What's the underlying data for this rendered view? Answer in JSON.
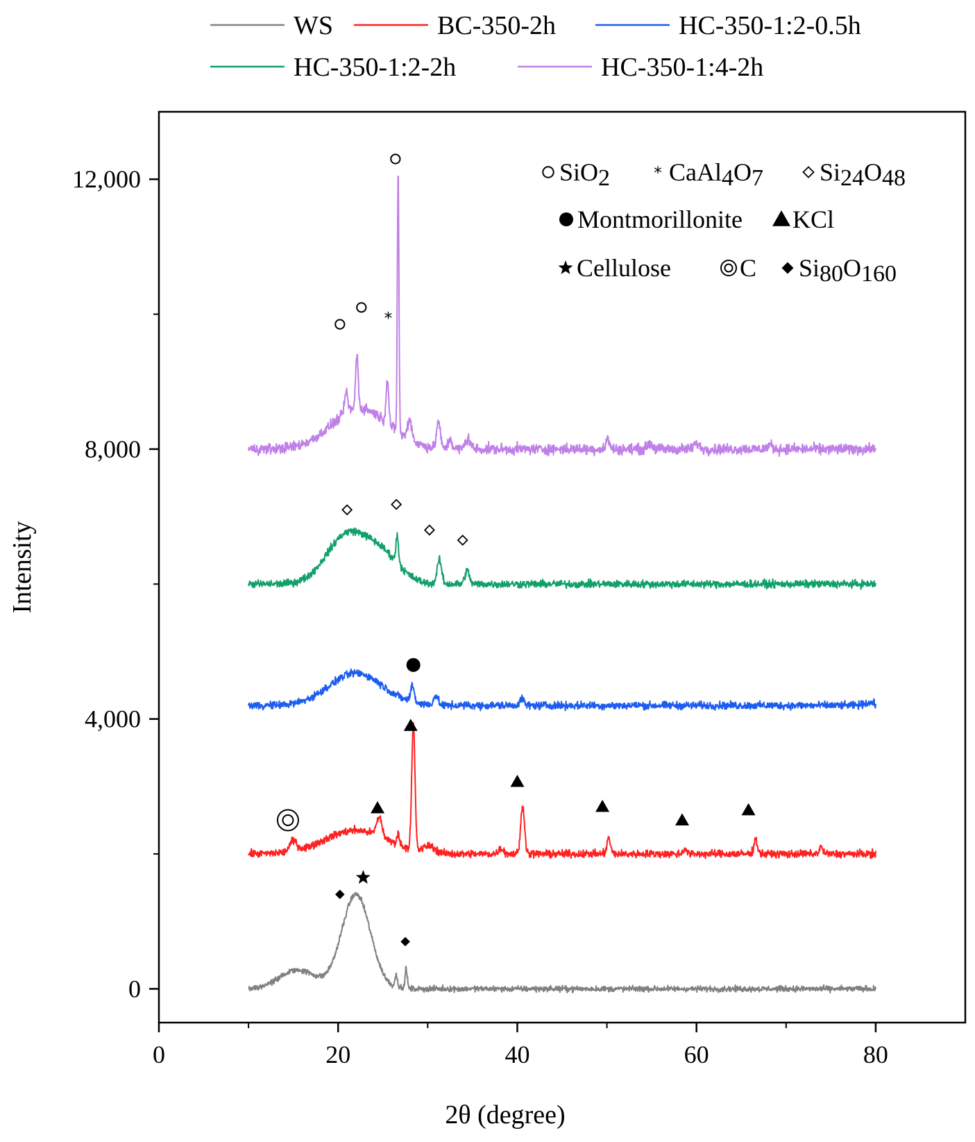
{
  "chart_data": {
    "type": "line",
    "title": "",
    "xlabel": "2θ (degree)",
    "ylabel": "Intensity",
    "xlim": [
      0,
      90
    ],
    "ylim": [
      -500,
      13000
    ],
    "x_ticks": [
      0,
      20,
      40,
      60,
      80
    ],
    "x_tick_labels": [
      "0",
      "20",
      "40",
      "60",
      "80"
    ],
    "y_ticks": [
      0,
      4000,
      8000,
      12000
    ],
    "y_tick_labels": [
      "0",
      "4,000",
      "8,000",
      "12,000"
    ],
    "x_range": [
      10,
      80
    ],
    "legend_position": "top",
    "series": [
      {
        "name": "WS",
        "color": "#808080",
        "offset": 0,
        "base_noise": 30,
        "features": [
          [
            15.5,
            280,
            2.0
          ],
          [
            22.0,
            1400,
            1.6
          ],
          [
            26.5,
            180,
            0.15
          ],
          [
            27.6,
            300,
            0.12
          ]
        ]
      },
      {
        "name": "BC-350-2h",
        "color": "#ff2020",
        "offset": 2000,
        "base_noise": 40,
        "features": [
          [
            15.0,
            150,
            0.4
          ],
          [
            22.0,
            350,
            3.5
          ],
          [
            24.6,
            280,
            0.3
          ],
          [
            26.7,
            150,
            0.15
          ],
          [
            28.4,
            1850,
            0.18
          ],
          [
            30.2,
            100,
            0.6
          ],
          [
            38.2,
            80,
            0.3
          ],
          [
            40.6,
            700,
            0.22
          ],
          [
            50.2,
            230,
            0.2
          ],
          [
            58.7,
            80,
            0.2
          ],
          [
            66.6,
            220,
            0.2
          ],
          [
            73.9,
            100,
            0.2
          ]
        ]
      },
      {
        "name": "HC-350-1:2-0.5h",
        "color": "#1c5cf0",
        "offset": 4200,
        "base_noise": 40,
        "features": [
          [
            22.0,
            480,
            3.0
          ],
          [
            28.3,
            250,
            0.2
          ],
          [
            30.9,
            140,
            0.25
          ],
          [
            40.5,
            100,
            0.25
          ],
          [
            79.3,
            40,
            0.6
          ]
        ]
      },
      {
        "name": "HC-350-1:2-2h",
        "color": "#12a06a",
        "offset": 6000,
        "base_noise": 40,
        "features": [
          [
            21.0,
            720,
            2.3
          ],
          [
            25.0,
            380,
            2.0
          ],
          [
            26.6,
            400,
            0.15
          ],
          [
            31.3,
            350,
            0.25
          ],
          [
            34.4,
            200,
            0.25
          ]
        ]
      },
      {
        "name": "HC-350-1:4-2h",
        "color": "#c080e8",
        "offset": 8000,
        "base_noise": 55,
        "features": [
          [
            22.5,
            600,
            3.2
          ],
          [
            20.9,
            300,
            0.2
          ],
          [
            22.1,
            800,
            0.15
          ],
          [
            25.5,
            650,
            0.15
          ],
          [
            26.7,
            3900,
            0.09
          ],
          [
            28.0,
            300,
            0.25
          ],
          [
            31.2,
            400,
            0.2
          ],
          [
            32.5,
            150,
            0.2
          ],
          [
            34.5,
            150,
            0.3
          ],
          [
            50.1,
            150,
            0.2
          ],
          [
            54.8,
            80,
            0.3
          ],
          [
            60.0,
            80,
            0.3
          ],
          [
            68.2,
            60,
            0.3
          ]
        ]
      }
    ],
    "legend": [
      {
        "label": "WS",
        "color": "#808080"
      },
      {
        "label": "BC-350-2h",
        "color": "#ff2020"
      },
      {
        "label": "HC-350-1:2-0.5h",
        "color": "#1c5cf0"
      },
      {
        "label": "HC-350-1:2-2h",
        "color": "#12a06a"
      },
      {
        "label": "HC-350-1:4-2h",
        "color": "#c080e8"
      }
    ],
    "phase_key": [
      {
        "symbol": "open-circle",
        "formula": [
          "SiO",
          "2"
        ]
      },
      {
        "symbol": "asterisk",
        "formula": [
          "CaAl",
          "4",
          "O",
          "7"
        ]
      },
      {
        "symbol": "open-diamond",
        "formula": [
          "Si",
          "24",
          "O",
          "48"
        ]
      },
      {
        "symbol": "filled-circle",
        "formula": [
          "Montmorillonite"
        ]
      },
      {
        "symbol": "filled-triangle",
        "formula": [
          "KCl"
        ]
      },
      {
        "symbol": "filled-star",
        "formula": [
          "Cellulose"
        ]
      },
      {
        "symbol": "bullseye",
        "formula": [
          "C"
        ]
      },
      {
        "symbol": "filled-diamond",
        "formula": [
          "Si",
          "80",
          "O",
          "160"
        ]
      }
    ],
    "annotations": [
      {
        "symbol": "open-circle",
        "x": 26.4,
        "y": 12300
      },
      {
        "symbol": "open-circle",
        "x": 20.2,
        "y": 9850
      },
      {
        "symbol": "open-circle",
        "x": 22.6,
        "y": 10100
      },
      {
        "symbol": "asterisk",
        "x": 25.6,
        "y": 9950
      },
      {
        "symbol": "open-diamond",
        "x": 21.0,
        "y": 7100
      },
      {
        "symbol": "open-diamond",
        "x": 26.5,
        "y": 7180
      },
      {
        "symbol": "open-diamond",
        "x": 30.2,
        "y": 6800
      },
      {
        "symbol": "open-diamond",
        "x": 33.9,
        "y": 6650
      },
      {
        "symbol": "filled-circle",
        "x": 28.4,
        "y": 4800
      },
      {
        "symbol": "filled-triangle",
        "x": 28.1,
        "y": 3900
      },
      {
        "symbol": "filled-triangle",
        "x": 24.4,
        "y": 2680
      },
      {
        "symbol": "filled-triangle",
        "x": 40.0,
        "y": 3070
      },
      {
        "symbol": "filled-triangle",
        "x": 49.5,
        "y": 2700
      },
      {
        "symbol": "filled-triangle",
        "x": 58.4,
        "y": 2500
      },
      {
        "symbol": "filled-triangle",
        "x": 65.8,
        "y": 2650
      },
      {
        "symbol": "bullseye",
        "x": 14.4,
        "y": 2500
      },
      {
        "symbol": "filled-star",
        "x": 22.8,
        "y": 1650
      },
      {
        "symbol": "filled-diamond",
        "x": 20.2,
        "y": 1400
      },
      {
        "symbol": "filled-diamond",
        "x": 27.5,
        "y": 700
      }
    ]
  }
}
